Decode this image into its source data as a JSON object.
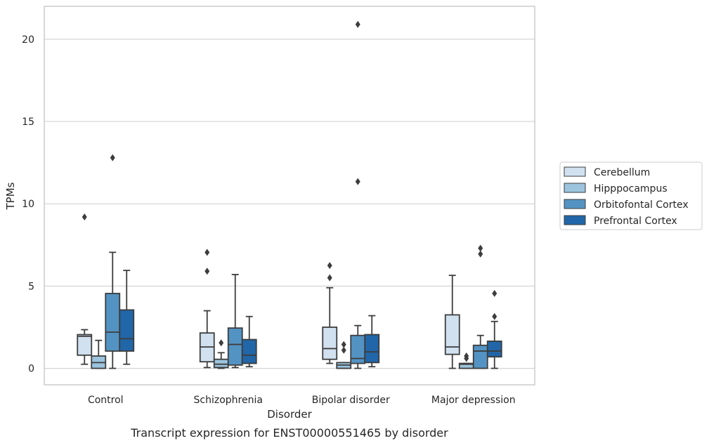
{
  "chart_data": {
    "type": "box",
    "title": "",
    "caption": "Transcript expression for ENST00000551465 by disorder",
    "xlabel": "Disorder",
    "ylabel": "TPMs",
    "ylim": [
      -1,
      22
    ],
    "yticks": [
      0,
      5,
      10,
      15,
      20
    ],
    "grid": "horizontal",
    "legend_position": "right",
    "categories": [
      "Control",
      "Schizophrenia",
      "Bipolar disorder",
      "Major depression"
    ],
    "series": [
      {
        "name": "Cerebellum",
        "color": "#d1e1f0",
        "boxes": [
          {
            "whislo": 0.25,
            "q1": 0.8,
            "med": 1.95,
            "q3": 2.05,
            "whishi": 2.35,
            "fliers": [
              9.2
            ]
          },
          {
            "whislo": 0.05,
            "q1": 0.4,
            "med": 1.3,
            "q3": 2.15,
            "whishi": 3.5,
            "fliers": [
              5.9,
              7.05
            ]
          },
          {
            "whislo": 0.3,
            "q1": 0.55,
            "med": 1.2,
            "q3": 2.5,
            "whishi": 4.9,
            "fliers": [
              5.5,
              6.25
            ]
          },
          {
            "whislo": 0.0,
            "q1": 0.85,
            "med": 1.3,
            "q3": 3.25,
            "whishi": 5.65,
            "fliers": []
          }
        ]
      },
      {
        "name": "Hipppocampus",
        "color": "#9cc4de",
        "boxes": [
          {
            "whislo": 0.0,
            "q1": 0.0,
            "med": 0.35,
            "q3": 0.75,
            "whishi": 1.7,
            "fliers": []
          },
          {
            "whislo": 0.0,
            "q1": 0.05,
            "med": 0.25,
            "q3": 0.55,
            "whishi": 0.95,
            "fliers": [
              1.55
            ]
          },
          {
            "whislo": 0.0,
            "q1": 0.0,
            "med": 0.2,
            "q3": 0.35,
            "whishi": 0.35,
            "fliers": [
              1.1,
              1.45
            ]
          },
          {
            "whislo": 0.0,
            "q1": 0.0,
            "med": 0.25,
            "q3": 0.3,
            "whishi": 0.3,
            "fliers": [
              0.6,
              0.75
            ]
          }
        ]
      },
      {
        "name": "Orbitofontal Cortex",
        "color": "#5393c3",
        "boxes": [
          {
            "whislo": 0.0,
            "q1": 1.05,
            "med": 2.2,
            "q3": 4.55,
            "whishi": 7.05,
            "fliers": [
              12.8
            ]
          },
          {
            "whislo": 0.05,
            "q1": 0.2,
            "med": 1.45,
            "q3": 2.45,
            "whishi": 5.7,
            "fliers": []
          },
          {
            "whislo": 0.0,
            "q1": 0.3,
            "med": 0.6,
            "q3": 2.0,
            "whishi": 2.6,
            "fliers": [
              11.35,
              20.9
            ]
          },
          {
            "whislo": 0.0,
            "q1": 0.0,
            "med": 1.05,
            "q3": 1.4,
            "whishi": 2.0,
            "fliers": [
              6.95,
              7.3
            ]
          }
        ]
      },
      {
        "name": "Prefrontal Cortex",
        "color": "#2166a8",
        "boxes": [
          {
            "whislo": 0.25,
            "q1": 1.05,
            "med": 1.8,
            "q3": 3.55,
            "whishi": 5.95,
            "fliers": []
          },
          {
            "whislo": 0.1,
            "q1": 0.3,
            "med": 0.8,
            "q3": 1.75,
            "whishi": 3.15,
            "fliers": []
          },
          {
            "whislo": 0.1,
            "q1": 0.35,
            "med": 1.0,
            "q3": 2.05,
            "whishi": 3.2,
            "fliers": []
          },
          {
            "whislo": 0.0,
            "q1": 0.7,
            "med": 1.05,
            "q3": 1.65,
            "whishi": 2.85,
            "fliers": [
              3.15,
              4.55
            ]
          }
        ]
      }
    ]
  }
}
